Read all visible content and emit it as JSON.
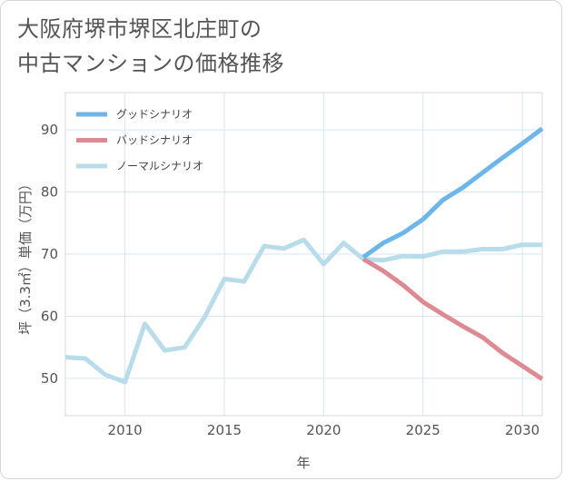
{
  "title_lines": [
    "大阪府堺市堺区北庄町の",
    "中古マンションの価格推移"
  ],
  "chart_data": {
    "type": "line",
    "title": "大阪府堺市堺区北庄町の中古マンションの価格推移",
    "xlabel": "年",
    "ylabel": "坪（3.3㎡）単価（万円）",
    "xlim": [
      2007,
      2031
    ],
    "ylim": [
      44,
      96
    ],
    "xticks": [
      2010,
      2015,
      2020,
      2025,
      2030
    ],
    "yticks": [
      50,
      60,
      70,
      80,
      90
    ],
    "grid": true,
    "legend_position": "top-left",
    "series": [
      {
        "name": "グッドシナリオ",
        "color": "#6cb6ea",
        "x": [
          2022,
          2023,
          2024,
          2025,
          2026,
          2027,
          2028,
          2029,
          2030,
          2031
        ],
        "y": [
          69.5,
          71.8,
          73.4,
          75.6,
          78.7,
          80.7,
          83.1,
          85.5,
          87.8,
          90.2
        ]
      },
      {
        "name": "バッドシナリオ",
        "color": "#dd8a92",
        "x": [
          2022,
          2023,
          2024,
          2025,
          2026,
          2027,
          2028,
          2029,
          2030,
          2031
        ],
        "y": [
          69.2,
          67.3,
          65.0,
          62.3,
          60.3,
          58.4,
          56.6,
          54.1,
          52.0,
          49.9
        ]
      },
      {
        "name": "ノーマルシナリオ",
        "color": "#b8dcea",
        "x": [
          2007,
          2008,
          2009,
          2010,
          2011,
          2012,
          2013,
          2014,
          2015,
          2016,
          2017,
          2018,
          2019,
          2020,
          2021,
          2022,
          2023,
          2024,
          2025,
          2026,
          2027,
          2028,
          2029,
          2030,
          2031
        ],
        "y": [
          53.4,
          53.2,
          50.6,
          49.4,
          58.8,
          54.5,
          55.0,
          59.8,
          66.0,
          65.6,
          71.3,
          70.9,
          72.3,
          68.4,
          71.8,
          69.2,
          69.0,
          69.7,
          69.6,
          70.4,
          70.4,
          70.8,
          70.8,
          71.5,
          71.5
        ]
      }
    ]
  }
}
